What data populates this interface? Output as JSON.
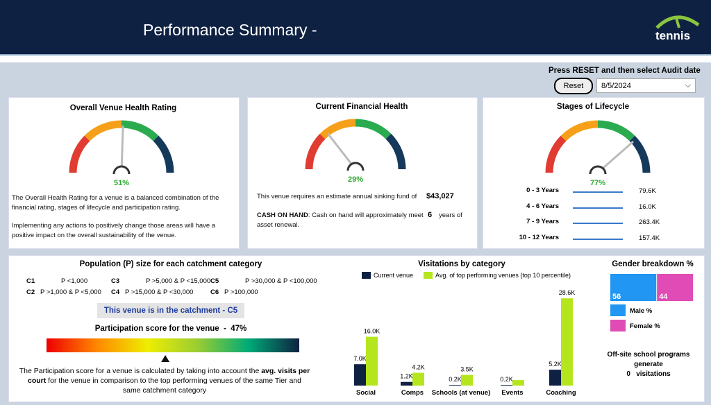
{
  "header": {
    "title": "Performance Summary -",
    "logo": "tennis"
  },
  "controls": {
    "instruction": "Press RESET and then select Audit date",
    "reset": "Reset",
    "date": "8/5/2024"
  },
  "health": {
    "title": "Overall Venue Health Rating",
    "value": 51,
    "value_label": "51%",
    "text": [
      "The Overall Health Rating for a venue is a balanced combination of the financial rating, stages of lifecycle and participation rating.",
      "Implementing any actions to positively change those areas will have a positive impact on the overall sustainability of the venue."
    ]
  },
  "financial": {
    "title": "Current Financial Health",
    "value": 29,
    "value_label": "29%",
    "sinking_text": "This venue requires an estimate annual sinking fund of",
    "sinking_fund": "$43,027",
    "cash_label": "CASH ON HAND",
    "cash_text": ": Cash on hand will approximately meet",
    "years": 6,
    "years_text": "years of",
    "renewal_text": "asset renewal."
  },
  "lifecycle": {
    "title": "Stages of Lifecycle",
    "value": 77,
    "value_label": "77%",
    "rows": [
      {
        "label": "0 - 3 Years",
        "value": "79.6K"
      },
      {
        "label": "4 - 6 Years",
        "value": "16.0K"
      },
      {
        "label": "7 - 9 Years",
        "value": "263.4K"
      },
      {
        "label": "10 - 12 Years",
        "value": "157.4K"
      }
    ]
  },
  "population": {
    "title": "Population (P) size for each catchment category",
    "categories": [
      {
        "code": "C1",
        "rule": "P <1,000"
      },
      {
        "code": "C3",
        "rule": "P >5,000 & P <15,000"
      },
      {
        "code": "C5",
        "rule": "P >30,000 & P <100,000"
      },
      {
        "code": "C2",
        "rule": "P >1,000 & P <5,000"
      },
      {
        "code": "C4",
        "rule": "P >15,000 & P <30,000"
      },
      {
        "code": "C6",
        "rule": "P >100,000"
      }
    ],
    "catchment": "This venue is in the catchment - C5"
  },
  "participation": {
    "title": "Participation score for the venue  -",
    "value": 47,
    "value_label": "47%",
    "description": [
      "The Participation score for a venue is calculated by taking into account the ",
      "avg. visits per court",
      " for the venue in comparison to the top performing venues of the same Tier and same catchment category"
    ]
  },
  "visitations": {
    "type": "bar",
    "title": "Visitations by category",
    "categories": [
      "Social",
      "Comps",
      "Schools (at venue)",
      "Events",
      "Coaching"
    ],
    "ylim": [
      0,
      30000
    ],
    "series": [
      {
        "name": "Current venue",
        "color": "#0f2142",
        "values": [
          7000,
          1200,
          200,
          200,
          5200
        ],
        "value_labels": [
          "7.0K",
          "1.2K",
          "0.2K",
          "0.2K",
          "5.2K"
        ]
      },
      {
        "name": "Avg. of top performing venues (top 10 percentile)",
        "color": "#b5e61d",
        "values": [
          16000,
          4200,
          3500,
          1800,
          28600
        ],
        "value_labels": [
          "16.0K",
          "4.2K",
          "3.5K",
          null,
          "28.6K"
        ]
      }
    ]
  },
  "gender": {
    "title": "Gender breakdown %",
    "series": [
      {
        "name": "Male %",
        "value": 56,
        "color": "#2196f3"
      },
      {
        "name": "Female %",
        "value": 44,
        "color": "#e04bb5"
      }
    ]
  },
  "offsite": {
    "text_before": "Off-site school programs generate",
    "value": 0,
    "text_after": "visitations"
  }
}
